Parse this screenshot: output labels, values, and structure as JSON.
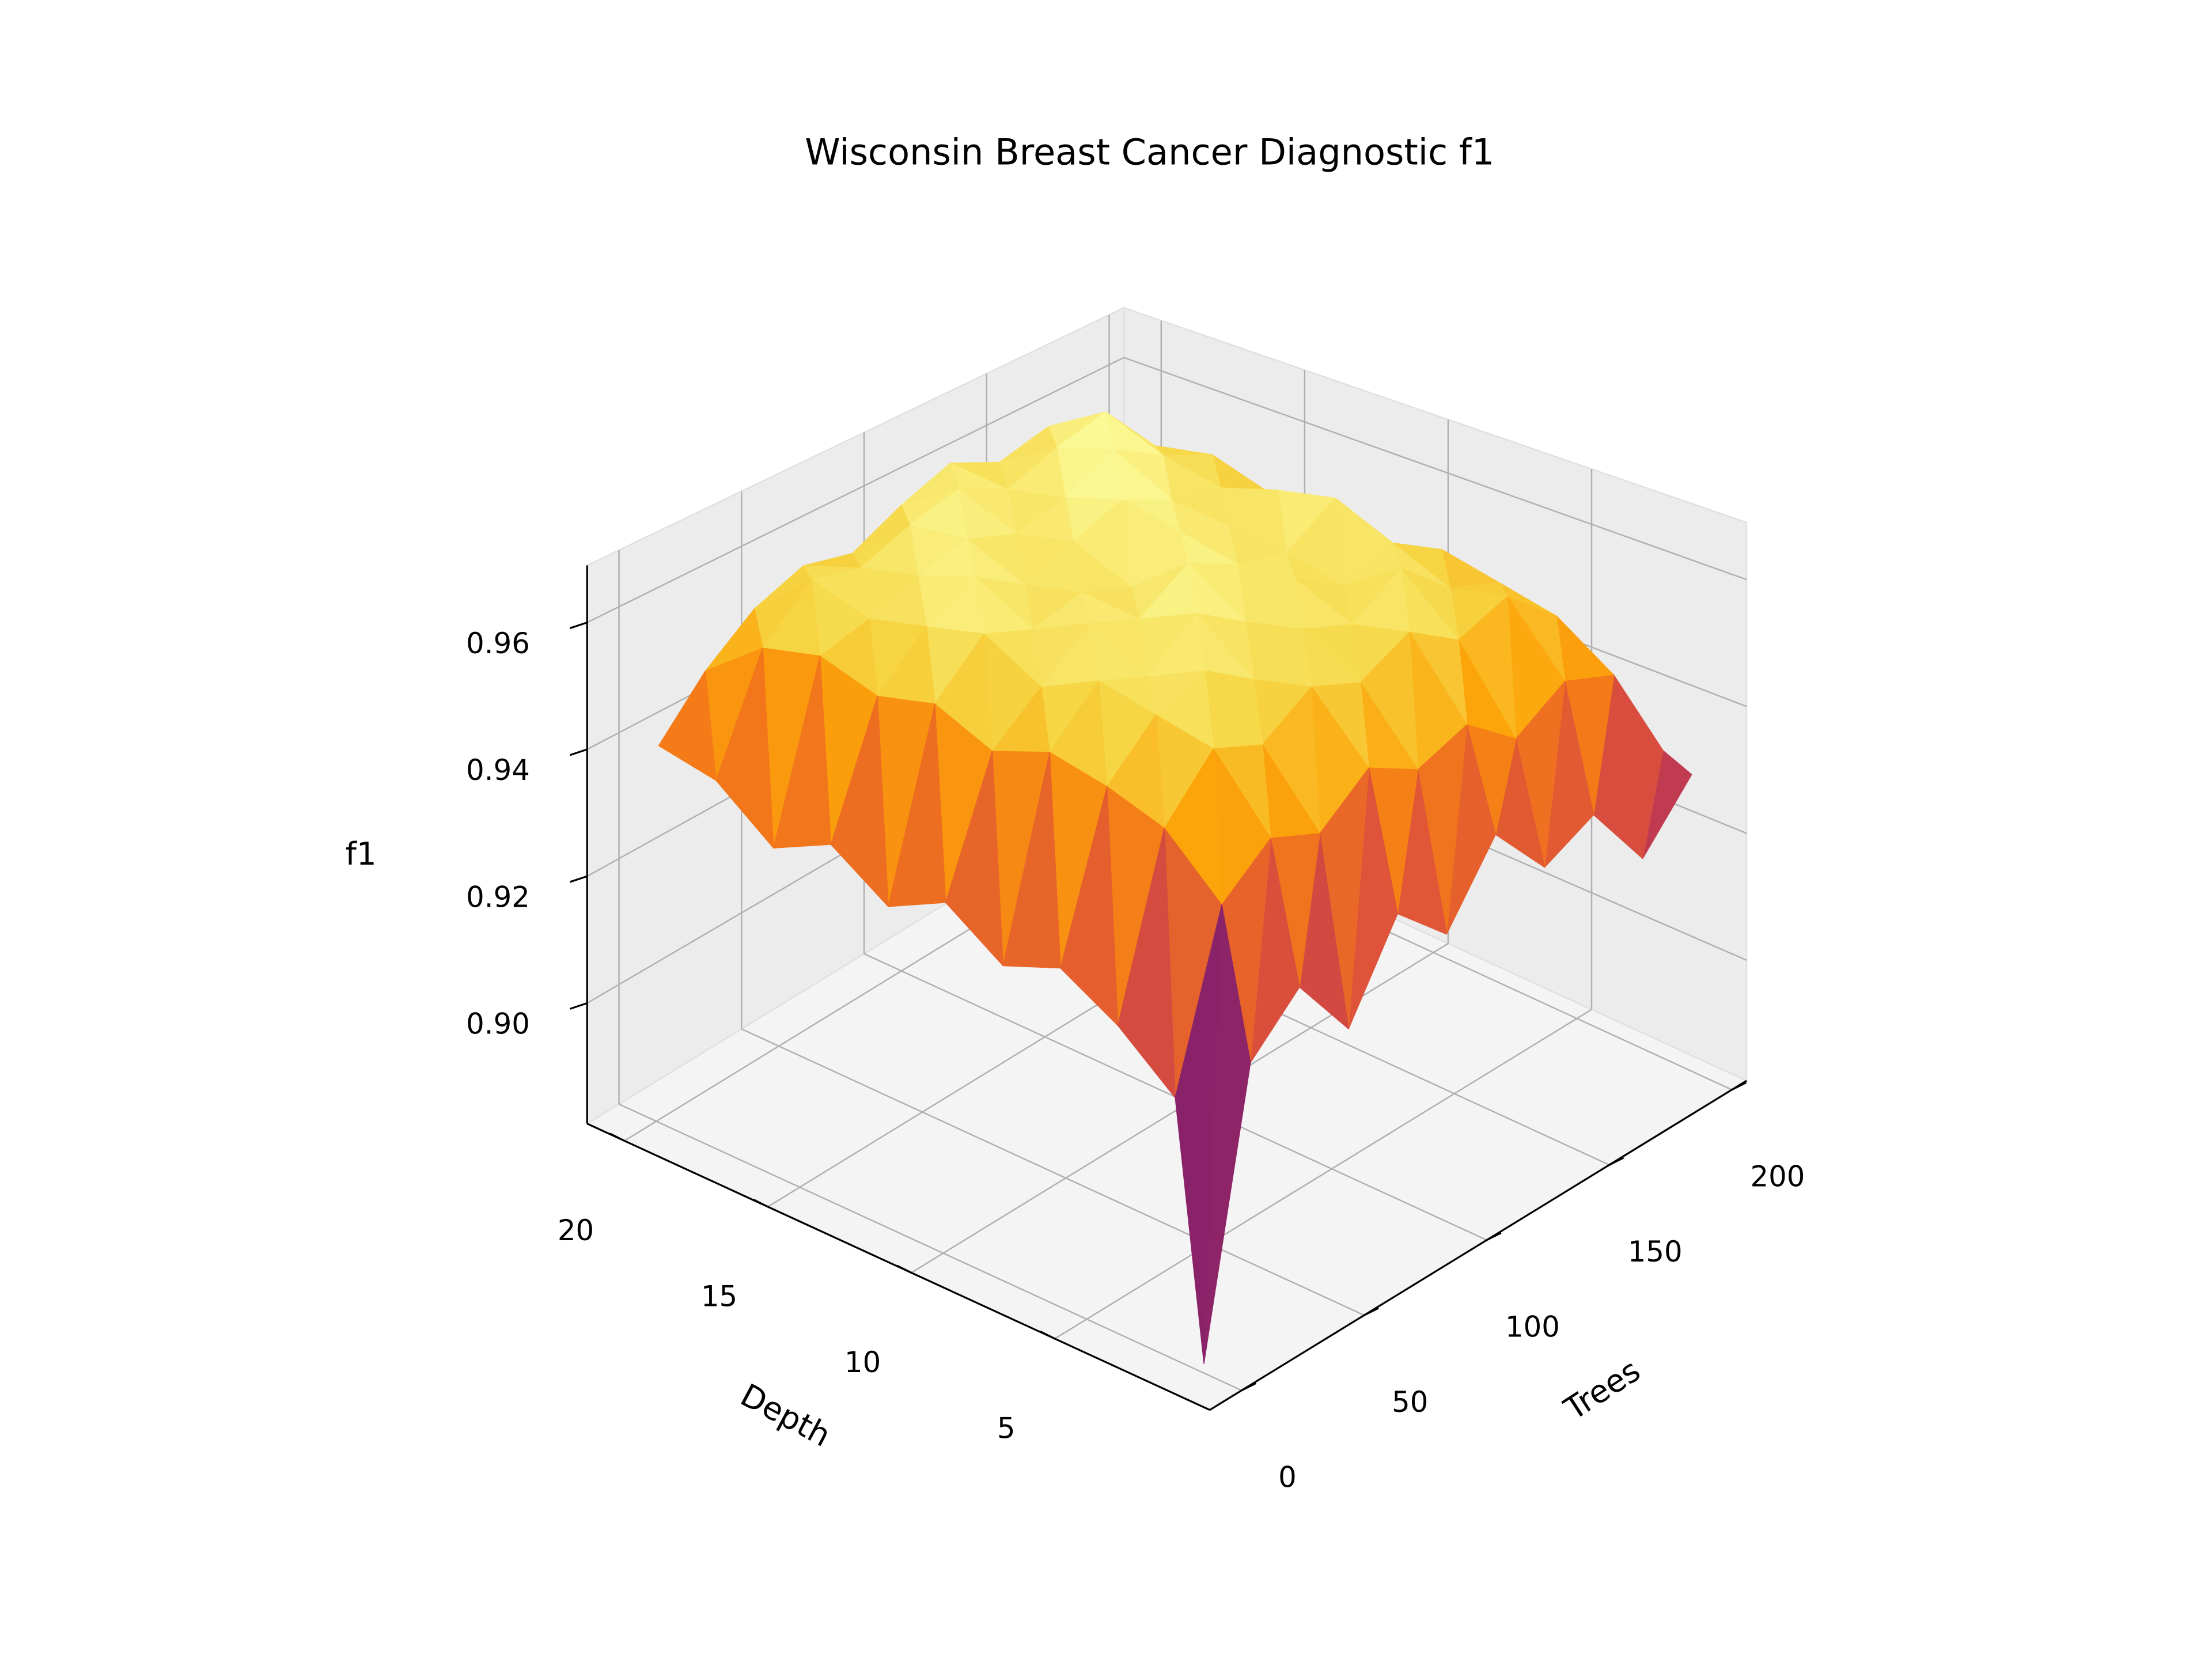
{
  "chart_data": {
    "type": "surface3d",
    "title": "Wisconsin Breast Cancer Diagnostic f1",
    "xlabel": "Trees",
    "ylabel": "Depth",
    "zlabel": "f1",
    "colormap": "inferno",
    "x": [
      1,
      20,
      40,
      60,
      80,
      100,
      120,
      140,
      160,
      180,
      200
    ],
    "y": [
      1,
      2,
      4,
      6,
      8,
      10,
      12,
      14,
      16,
      18,
      20
    ],
    "z": [
      [
        0.882,
        0.921,
        0.928,
        0.918,
        0.931,
        0.924,
        0.935,
        0.926,
        0.93,
        0.919,
        0.928
      ],
      [
        0.918,
        0.942,
        0.948,
        0.945,
        0.951,
        0.947,
        0.95,
        0.944,
        0.949,
        0.946,
        0.93
      ],
      [
        0.925,
        0.95,
        0.958,
        0.955,
        0.96,
        0.957,
        0.961,
        0.956,
        0.959,
        0.952,
        0.935
      ],
      [
        0.93,
        0.953,
        0.96,
        0.963,
        0.958,
        0.962,
        0.959,
        0.964,
        0.957,
        0.954,
        0.938
      ],
      [
        0.927,
        0.955,
        0.962,
        0.959,
        0.965,
        0.96,
        0.963,
        0.958,
        0.961,
        0.956,
        0.932
      ],
      [
        0.933,
        0.952,
        0.958,
        0.964,
        0.961,
        0.966,
        0.962,
        0.96,
        0.965,
        0.953,
        0.94
      ],
      [
        0.929,
        0.956,
        0.963,
        0.96,
        0.962,
        0.959,
        0.964,
        0.961,
        0.963,
        0.957,
        0.936
      ],
      [
        0.935,
        0.954,
        0.961,
        0.965,
        0.96,
        0.963,
        0.966,
        0.962,
        0.96,
        0.955,
        0.942
      ],
      [
        0.931,
        0.957,
        0.959,
        0.962,
        0.964,
        0.961,
        0.963,
        0.967,
        0.962,
        0.958,
        0.939
      ],
      [
        0.938,
        0.955,
        0.962,
        0.96,
        0.963,
        0.965,
        0.961,
        0.964,
        0.966,
        0.956,
        0.944
      ],
      [
        0.94,
        0.948,
        0.954,
        0.957,
        0.955,
        0.959,
        0.962,
        0.958,
        0.96,
        0.952,
        0.945
      ]
    ],
    "xlim": [
      -13,
      206
    ],
    "ylim": [
      -0.4,
      21.3
    ],
    "zlim": [
      0.881,
      0.969
    ],
    "xticks": [
      0,
      50,
      100,
      150,
      200
    ],
    "yticks": [
      5,
      10,
      15,
      20
    ],
    "zticks": [
      {
        "value": 0.9,
        "label": "0.90"
      },
      {
        "value": 0.92,
        "label": "0.92"
      },
      {
        "value": 0.94,
        "label": "0.94"
      },
      {
        "value": 0.96,
        "label": "0.96"
      }
    ],
    "grid": true
  }
}
